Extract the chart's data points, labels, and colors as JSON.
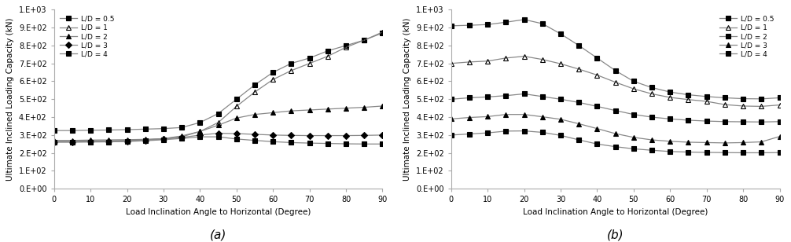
{
  "x_angles": [
    0,
    5,
    10,
    15,
    20,
    25,
    30,
    35,
    40,
    45,
    50,
    55,
    60,
    65,
    70,
    75,
    80,
    85,
    90
  ],
  "clay": {
    "LD05": [
      325,
      325,
      327,
      328,
      330,
      333,
      336,
      342,
      370,
      420,
      500,
      580,
      650,
      700,
      730,
      770,
      800,
      830,
      870
    ],
    "LD1": [
      270,
      270,
      272,
      273,
      274,
      276,
      280,
      290,
      320,
      370,
      460,
      540,
      610,
      660,
      700,
      740,
      790,
      830,
      875
    ],
    "LD2": [
      265,
      265,
      267,
      268,
      270,
      273,
      280,
      295,
      320,
      355,
      395,
      415,
      425,
      435,
      440,
      445,
      450,
      455,
      462
    ],
    "LD3": [
      262,
      262,
      263,
      264,
      266,
      270,
      277,
      286,
      300,
      310,
      308,
      304,
      300,
      298,
      297,
      297,
      297,
      298,
      300
    ],
    "LD4": [
      260,
      260,
      261,
      262,
      264,
      268,
      274,
      281,
      290,
      290,
      278,
      270,
      263,
      258,
      255,
      253,
      251,
      250,
      250
    ]
  },
  "sand": {
    "LD05": [
      910,
      913,
      917,
      930,
      945,
      922,
      865,
      800,
      730,
      660,
      600,
      565,
      540,
      525,
      515,
      508,
      503,
      502,
      508
    ],
    "LD1": [
      700,
      708,
      713,
      730,
      740,
      722,
      698,
      668,
      635,
      595,
      558,
      530,
      510,
      498,
      488,
      470,
      462,
      460,
      468
    ],
    "LD2": [
      500,
      508,
      513,
      520,
      530,
      515,
      500,
      482,
      460,
      437,
      415,
      400,
      390,
      383,
      378,
      375,
      374,
      373,
      375
    ],
    "LD3": [
      390,
      398,
      403,
      415,
      415,
      402,
      388,
      363,
      336,
      308,
      287,
      273,
      265,
      260,
      258,
      256,
      258,
      262,
      292
    ],
    "LD4": [
      300,
      306,
      312,
      322,
      323,
      315,
      298,
      273,
      250,
      235,
      223,
      215,
      208,
      205,
      203,
      202,
      201,
      201,
      202
    ]
  },
  "clay_marker_styles": [
    {
      "marker": "s",
      "mfc": "black",
      "mec": "black"
    },
    {
      "marker": "^",
      "mfc": "none",
      "mec": "black"
    },
    {
      "marker": "^",
      "mfc": "black",
      "mec": "black"
    },
    {
      "marker": "D",
      "mfc": "black",
      "mec": "black"
    },
    {
      "marker": "s",
      "mfc": "black",
      "mec": "black"
    }
  ],
  "sand_marker_styles": [
    {
      "marker": "s",
      "mfc": "black",
      "mec": "black"
    },
    {
      "marker": "^",
      "mfc": "none",
      "mec": "black"
    },
    {
      "marker": "s",
      "mfc": "black",
      "mec": "black"
    },
    {
      "marker": "^",
      "mfc": "black",
      "mec": "black"
    },
    {
      "marker": "s",
      "mfc": "black",
      "mec": "black"
    }
  ],
  "legend_labels": [
    "L/D = 0.5",
    "L/D = 1",
    "L/D = 2",
    "L/D = 3",
    "L/D = 4"
  ],
  "xlabel": "Load Inclination Angle to Horizontal (Degree)",
  "ylabel": "Ultimate Inclined Loading Capacity (kN)",
  "xlim": [
    0,
    90
  ],
  "ylim": [
    0,
    1000
  ],
  "xticks": [
    0,
    10,
    20,
    30,
    40,
    50,
    60,
    70,
    80,
    90
  ],
  "yticks": [
    0,
    100,
    200,
    300,
    400,
    500,
    600,
    700,
    800,
    900,
    1000
  ],
  "label_a": "(a)",
  "label_b": "(b)",
  "line_color": "#888888",
  "background_color": "#ffffff"
}
